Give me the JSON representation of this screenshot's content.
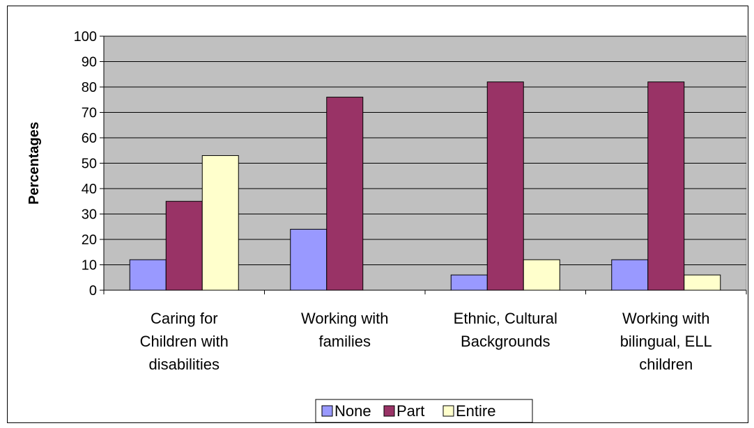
{
  "chart_data": {
    "type": "bar",
    "title": "",
    "xlabel": "",
    "ylabel": "Percentages",
    "ylim": [
      0,
      100
    ],
    "yticks": [
      0,
      10,
      20,
      30,
      40,
      50,
      60,
      70,
      80,
      90,
      100
    ],
    "grid": "horizontal",
    "legend_position": "bottom",
    "categories": [
      [
        "Caring for",
        "Children with",
        "disabilities"
      ],
      [
        "Working with",
        "families"
      ],
      [
        "Ethnic, Cultural",
        "Backgrounds"
      ],
      [
        "Working with",
        "bilingual, ELL",
        "children"
      ]
    ],
    "series": [
      {
        "name": "None",
        "color": "#9999ff",
        "values": [
          12,
          24,
          6,
          12
        ]
      },
      {
        "name": "Part",
        "color": "#993366",
        "values": [
          35,
          76,
          82,
          82
        ]
      },
      {
        "name": "Entire",
        "color": "#ffffcc",
        "values": [
          53,
          0,
          12,
          6
        ]
      }
    ],
    "plot_background": "#c0c0c0"
  }
}
